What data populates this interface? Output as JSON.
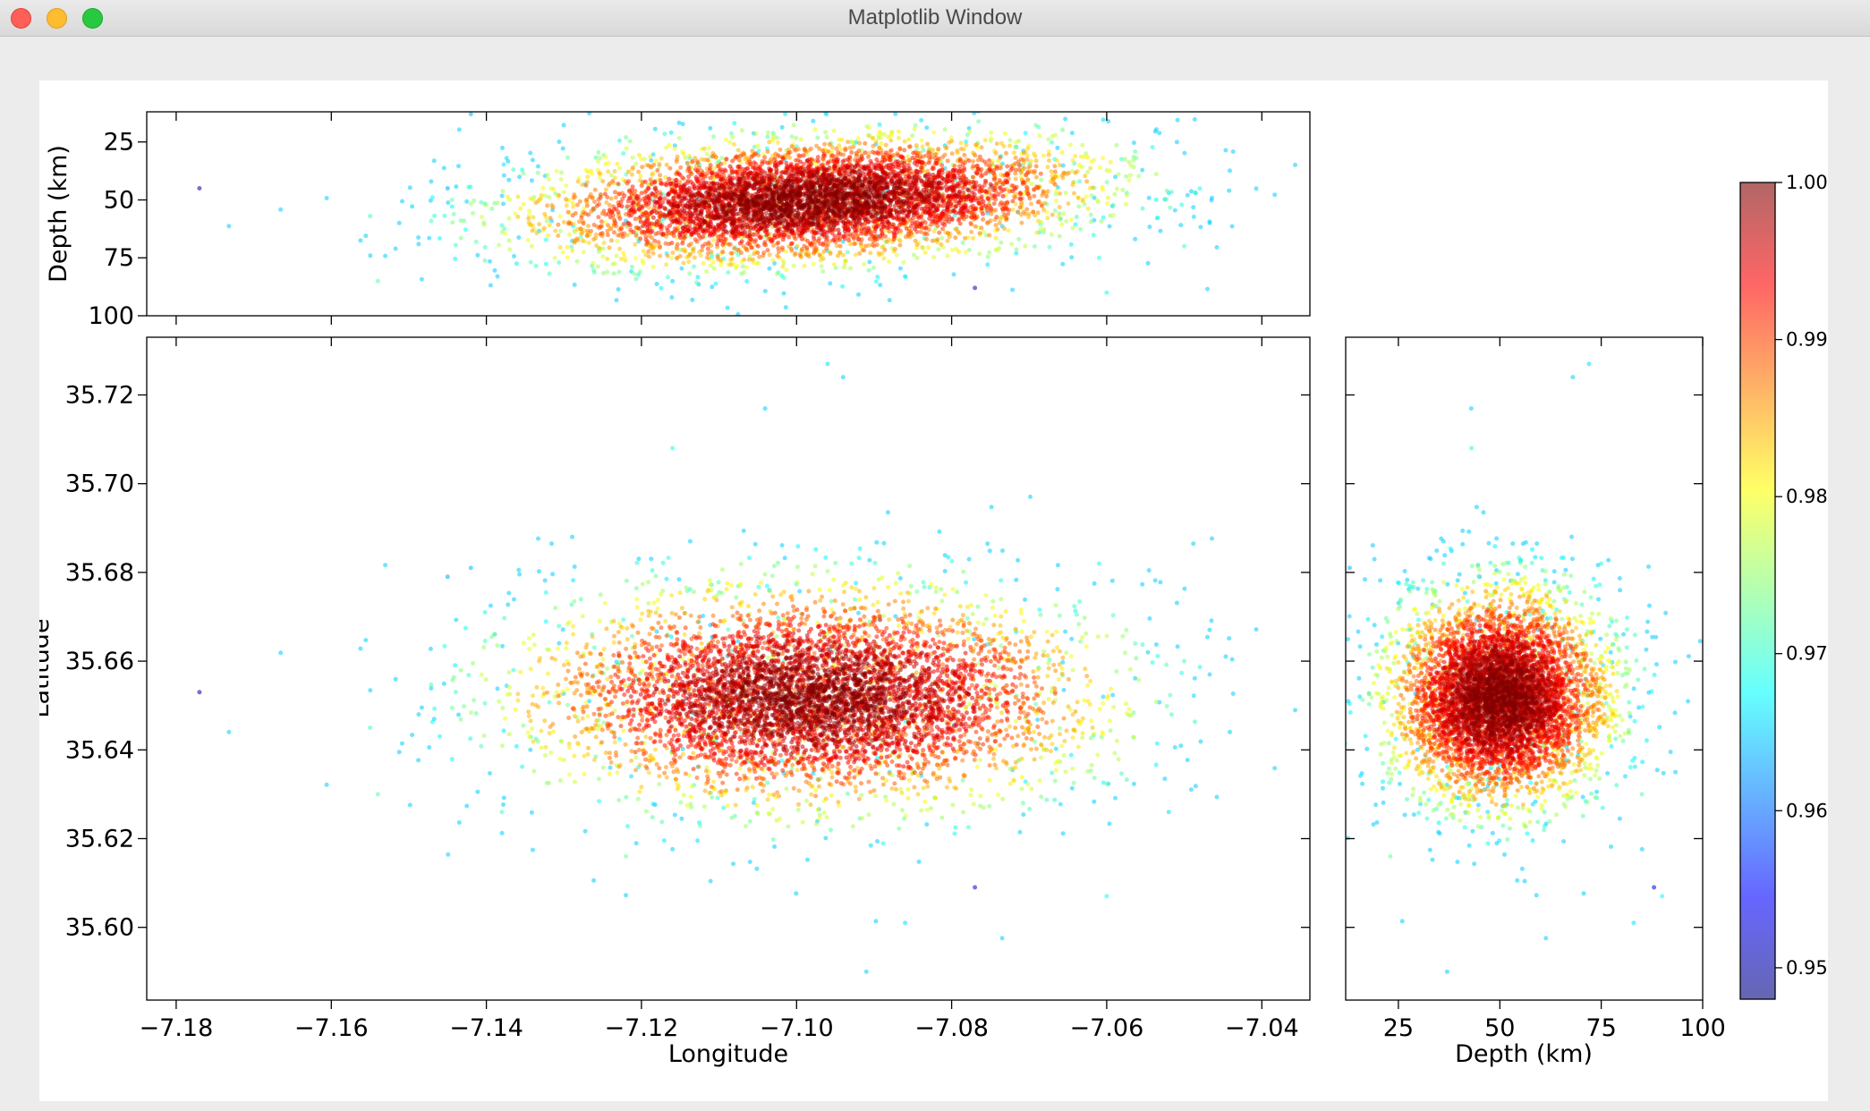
{
  "window": {
    "title": "Matplotlib Window"
  },
  "colormap": [
    "#00007f",
    "#0000ff",
    "#007fff",
    "#00ffff",
    "#7fff7f",
    "#ffff00",
    "#ff7f00",
    "#ff0000",
    "#7f0000"
  ],
  "chart_data": [
    {
      "panel": "top",
      "type": "scatter",
      "xlabel": "",
      "ylabel": "Depth (km)",
      "xlim": [
        -7.1838,
        -7.0338
      ],
      "ylim": [
        100,
        12
      ],
      "xticks": [
        -7.18,
        -7.16,
        -7.14,
        -7.12,
        -7.1,
        -7.08,
        -7.06,
        -7.04
      ],
      "yticks": [
        25,
        50,
        75,
        100
      ],
      "ytick_labels": [
        "25",
        "50",
        "75",
        "100"
      ]
    },
    {
      "panel": "main",
      "type": "scatter",
      "xlabel": "Longitude",
      "ylabel": "Latitude",
      "xlim": [
        -7.1838,
        -7.0338
      ],
      "ylim": [
        35.5836,
        35.733
      ],
      "xticks": [
        -7.18,
        -7.16,
        -7.14,
        -7.12,
        -7.1,
        -7.08,
        -7.06,
        -7.04
      ],
      "xtick_labels": [
        "−7.18",
        "−7.16",
        "−7.14",
        "−7.12",
        "−7.10",
        "−7.08",
        "−7.06",
        "−7.04"
      ],
      "yticks": [
        35.6,
        35.62,
        35.64,
        35.66,
        35.68,
        35.7,
        35.72
      ],
      "ytick_labels": [
        "35.60",
        "35.62",
        "35.64",
        "35.66",
        "35.68",
        "35.70",
        "35.72"
      ],
      "cluster": {
        "center_lon": -7.098,
        "center_lat": 35.652,
        "center_depth_km": 50,
        "n_points_approx": 6000
      },
      "outliers": [
        {
          "lon": -7.177,
          "lat": 35.653,
          "depth": 45,
          "value": 0.95
        },
        {
          "lon": -7.142,
          "lat": 35.681,
          "depth": 13,
          "value": 0.964
        },
        {
          "lon": -7.145,
          "lat": 35.679,
          "depth": 45,
          "value": 0.963
        },
        {
          "lon": -7.096,
          "lat": 35.727,
          "depth": 72,
          "value": 0.966
        },
        {
          "lon": -7.094,
          "lat": 35.724,
          "depth": 68,
          "value": 0.965
        },
        {
          "lon": -7.116,
          "lat": 35.708,
          "depth": 43,
          "value": 0.969
        },
        {
          "lon": -7.077,
          "lat": 35.609,
          "depth": 88,
          "value": 0.952
        },
        {
          "lon": -7.086,
          "lat": 35.601,
          "depth": 83,
          "value": 0.966
        },
        {
          "lon": -7.091,
          "lat": 35.59,
          "depth": 37,
          "value": 0.965
        },
        {
          "lon": -7.06,
          "lat": 35.607,
          "depth": 90,
          "value": 0.968
        },
        {
          "lon": -7.052,
          "lat": 35.626,
          "depth": 47,
          "value": 0.966
        },
        {
          "lon": -7.155,
          "lat": 35.645,
          "depth": 57,
          "value": 0.97
        },
        {
          "lon": -7.138,
          "lat": 35.626,
          "depth": 61,
          "value": 0.971
        },
        {
          "lon": -7.05,
          "lat": 35.66,
          "depth": 70,
          "value": 0.971
        },
        {
          "lon": -7.154,
          "lat": 35.63,
          "depth": 85,
          "value": 0.972
        },
        {
          "lon": -7.122,
          "lat": 35.616,
          "depth": 23,
          "value": 0.973
        },
        {
          "lon": -7.061,
          "lat": 35.682,
          "depth": 75,
          "value": 0.969
        }
      ]
    },
    {
      "panel": "right",
      "type": "scatter",
      "xlabel": "Depth (km)",
      "ylabel": "",
      "xlim": [
        12,
        100
      ],
      "ylim": [
        35.5836,
        35.733
      ],
      "xticks": [
        25,
        50,
        75,
        100
      ],
      "xtick_labels": [
        "25",
        "50",
        "75",
        "100"
      ]
    },
    {
      "panel": "colorbar",
      "type": "colorbar",
      "colormap": "jet",
      "range": [
        0.948,
        1.0
      ],
      "ticks": [
        0.95,
        0.96,
        0.97,
        0.98,
        0.99,
        1.0
      ],
      "tick_labels": [
        "0.95",
        "0.96",
        "0.97",
        "0.98",
        "0.99",
        "1.00"
      ]
    }
  ]
}
